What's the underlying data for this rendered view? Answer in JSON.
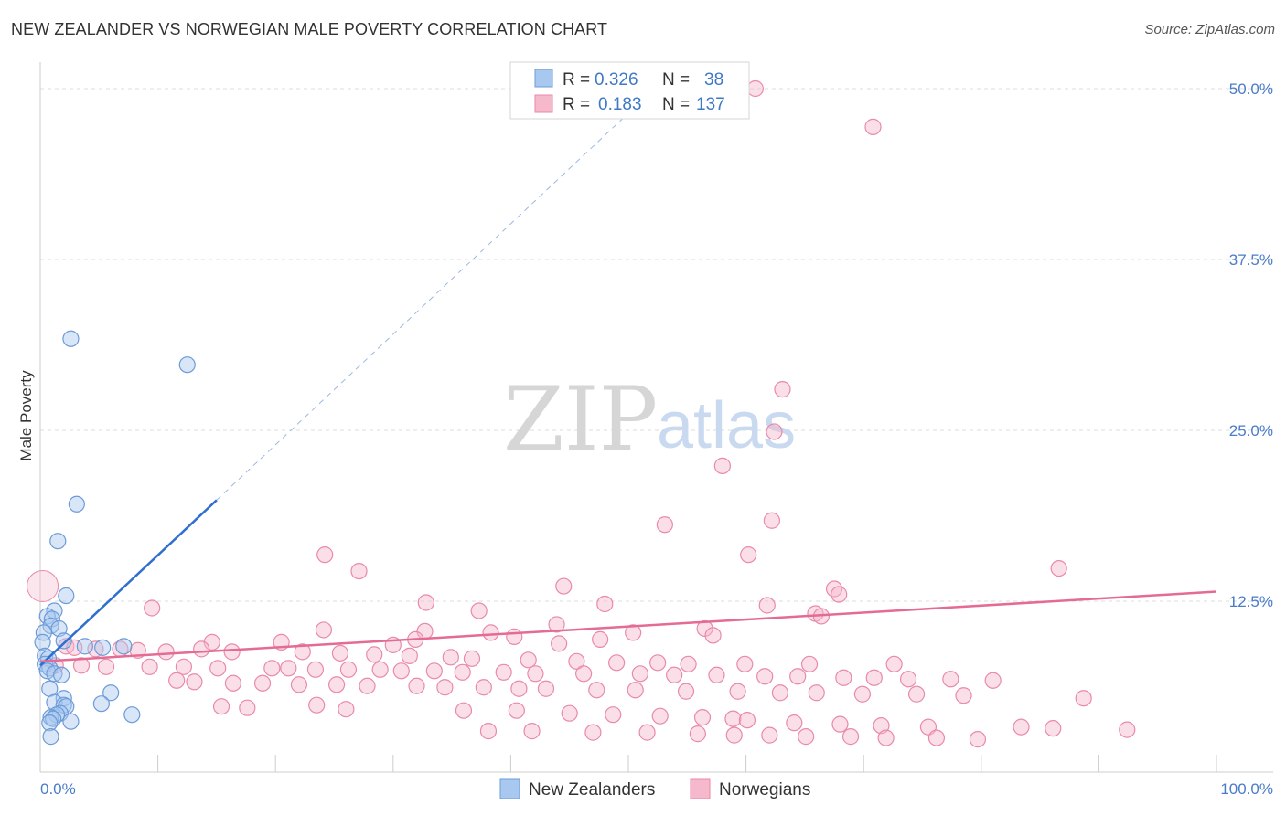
{
  "title": "NEW ZEALANDER VS NORWEGIAN MALE POVERTY CORRELATION CHART",
  "source": "Source: ZipAtlas.com",
  "watermark": {
    "zip": "ZIP",
    "atlas": "atlas"
  },
  "legend": {
    "rows": [
      {
        "r_label": "R = ",
        "r_value": "0.326",
        "n_label": "N = ",
        "n_value": "38",
        "color": "#a9c8f0"
      },
      {
        "r_label": "R = ",
        "r_value": "0.183",
        "n_label": "N = ",
        "n_value": "137",
        "color": "#f6b8cb"
      }
    ]
  },
  "bottom_legend": [
    "New Zealanders",
    "Norwegians"
  ],
  "chart_data": {
    "type": "scatter",
    "title": "NEW ZEALANDER VS NORWEGIAN MALE POVERTY CORRELATION CHART",
    "xlabel": "",
    "ylabel": "Male Poverty",
    "xlim": [
      0,
      100
    ],
    "ylim": [
      0,
      50
    ],
    "ytick_values": [
      12.5,
      25,
      37.5,
      50
    ],
    "ytick_labels": [
      "12.5%",
      "25.0%",
      "37.5%",
      "50.0%"
    ],
    "xtick_labels": [
      "0.0%",
      "100.0%"
    ],
    "grid": true,
    "series": [
      {
        "name": "New Zealanders",
        "color": "#a9c8f0",
        "stroke": "#6c9bd8",
        "line_color": "#2f6fd0",
        "trend": {
          "x0": 0.0,
          "y0": 7.8,
          "x1": 15.0,
          "y1": 19.9,
          "x_ext": 50.0,
          "y_ext": 48.2
        },
        "points": [
          [
            2.6,
            31.7
          ],
          [
            12.5,
            29.8
          ],
          [
            3.1,
            19.6
          ],
          [
            1.5,
            16.9
          ],
          [
            2.2,
            12.9
          ],
          [
            1.2,
            11.8
          ],
          [
            0.6,
            11.4
          ],
          [
            1.0,
            11.2
          ],
          [
            0.9,
            10.7
          ],
          [
            1.6,
            10.5
          ],
          [
            0.3,
            10.2
          ],
          [
            0.2,
            9.5
          ],
          [
            2.0,
            9.6
          ],
          [
            3.8,
            9.2
          ],
          [
            7.1,
            9.2
          ],
          [
            5.3,
            9.1
          ],
          [
            0.4,
            8.5
          ],
          [
            0.7,
            8.3
          ],
          [
            0.4,
            7.9
          ],
          [
            0.8,
            7.6
          ],
          [
            0.6,
            7.4
          ],
          [
            1.2,
            7.2
          ],
          [
            1.8,
            7.1
          ],
          [
            0.8,
            6.1
          ],
          [
            6.0,
            5.8
          ],
          [
            2.0,
            5.4
          ],
          [
            1.2,
            5.1
          ],
          [
            5.2,
            5.0
          ],
          [
            2.0,
            4.9
          ],
          [
            2.2,
            4.8
          ],
          [
            1.7,
            4.3
          ],
          [
            1.4,
            4.2
          ],
          [
            7.8,
            4.2
          ],
          [
            0.9,
            4.0
          ],
          [
            1.1,
            3.9
          ],
          [
            2.6,
            3.7
          ],
          [
            0.8,
            3.6
          ],
          [
            0.9,
            2.6
          ]
        ]
      },
      {
        "name": "Norwegians",
        "color": "#f6b8cb",
        "stroke": "#e98aa8",
        "line_color": "#e46b94",
        "trend": {
          "x0": 0.0,
          "y0": 8.1,
          "x1": 100.0,
          "y1": 13.2
        },
        "points": [
          [
            60.8,
            50.0
          ],
          [
            70.8,
            47.2
          ],
          [
            63.1,
            28.0
          ],
          [
            62.4,
            24.9
          ],
          [
            58.0,
            22.4
          ],
          [
            53.1,
            18.1
          ],
          [
            62.2,
            18.4
          ],
          [
            60.2,
            15.9
          ],
          [
            24.2,
            15.9
          ],
          [
            27.1,
            14.7
          ],
          [
            86.6,
            14.9
          ],
          [
            44.5,
            13.6
          ],
          [
            67.5,
            13.4
          ],
          [
            67.9,
            13.0
          ],
          [
            32.8,
            12.4
          ],
          [
            48.0,
            12.3
          ],
          [
            61.8,
            12.2
          ],
          [
            9.5,
            12.0
          ],
          [
            37.3,
            11.8
          ],
          [
            65.9,
            11.6
          ],
          [
            66.4,
            11.4
          ],
          [
            43.9,
            10.8
          ],
          [
            56.5,
            10.5
          ],
          [
            24.1,
            10.4
          ],
          [
            32.7,
            10.3
          ],
          [
            38.3,
            10.2
          ],
          [
            50.4,
            10.2
          ],
          [
            57.2,
            10.0
          ],
          [
            40.3,
            9.9
          ],
          [
            47.6,
            9.7
          ],
          [
            31.9,
            9.7
          ],
          [
            14.6,
            9.5
          ],
          [
            20.5,
            9.5
          ],
          [
            44.1,
            9.4
          ],
          [
            30.0,
            9.3
          ],
          [
            2.2,
            9.2
          ],
          [
            2.9,
            9.1
          ],
          [
            4.7,
            9.0
          ],
          [
            6.8,
            9.0
          ],
          [
            13.7,
            9.0
          ],
          [
            8.3,
            8.9
          ],
          [
            10.7,
            8.8
          ],
          [
            16.3,
            8.8
          ],
          [
            22.3,
            8.8
          ],
          [
            25.5,
            8.7
          ],
          [
            28.4,
            8.6
          ],
          [
            31.4,
            8.5
          ],
          [
            34.9,
            8.4
          ],
          [
            36.7,
            8.3
          ],
          [
            41.5,
            8.2
          ],
          [
            45.6,
            8.1
          ],
          [
            49.0,
            8.0
          ],
          [
            52.5,
            8.0
          ],
          [
            55.1,
            7.9
          ],
          [
            59.9,
            7.9
          ],
          [
            65.4,
            7.9
          ],
          [
            72.6,
            7.9
          ],
          [
            1.3,
            7.8
          ],
          [
            3.5,
            7.8
          ],
          [
            5.6,
            7.7
          ],
          [
            9.3,
            7.7
          ],
          [
            12.2,
            7.7
          ],
          [
            15.1,
            7.6
          ],
          [
            19.7,
            7.6
          ],
          [
            21.1,
            7.6
          ],
          [
            23.4,
            7.5
          ],
          [
            26.2,
            7.5
          ],
          [
            28.9,
            7.5
          ],
          [
            30.7,
            7.4
          ],
          [
            33.5,
            7.4
          ],
          [
            35.9,
            7.3
          ],
          [
            39.4,
            7.3
          ],
          [
            42.1,
            7.2
          ],
          [
            46.2,
            7.2
          ],
          [
            51.0,
            7.2
          ],
          [
            53.9,
            7.1
          ],
          [
            57.5,
            7.1
          ],
          [
            61.6,
            7.0
          ],
          [
            64.4,
            7.0
          ],
          [
            68.3,
            6.9
          ],
          [
            70.9,
            6.9
          ],
          [
            73.8,
            6.8
          ],
          [
            77.4,
            6.8
          ],
          [
            81.0,
            6.7
          ],
          [
            11.6,
            6.7
          ],
          [
            13.1,
            6.6
          ],
          [
            16.4,
            6.5
          ],
          [
            18.9,
            6.5
          ],
          [
            22.0,
            6.4
          ],
          [
            25.2,
            6.4
          ],
          [
            27.8,
            6.3
          ],
          [
            32.0,
            6.3
          ],
          [
            34.4,
            6.2
          ],
          [
            37.7,
            6.2
          ],
          [
            40.7,
            6.1
          ],
          [
            43.0,
            6.1
          ],
          [
            47.3,
            6.0
          ],
          [
            50.6,
            6.0
          ],
          [
            54.9,
            5.9
          ],
          [
            59.3,
            5.9
          ],
          [
            62.9,
            5.8
          ],
          [
            66.0,
            5.8
          ],
          [
            69.9,
            5.7
          ],
          [
            74.5,
            5.7
          ],
          [
            78.5,
            5.6
          ],
          [
            88.7,
            5.4
          ],
          [
            15.4,
            4.8
          ],
          [
            17.6,
            4.7
          ],
          [
            23.5,
            4.9
          ],
          [
            26.0,
            4.6
          ],
          [
            36.0,
            4.5
          ],
          [
            40.5,
            4.5
          ],
          [
            45.0,
            4.3
          ],
          [
            48.7,
            4.2
          ],
          [
            52.7,
            4.1
          ],
          [
            56.3,
            4.0
          ],
          [
            58.9,
            3.9
          ],
          [
            60.1,
            3.8
          ],
          [
            64.1,
            3.6
          ],
          [
            68.0,
            3.5
          ],
          [
            71.5,
            3.4
          ],
          [
            75.5,
            3.3
          ],
          [
            83.4,
            3.3
          ],
          [
            86.1,
            3.2
          ],
          [
            92.4,
            3.1
          ],
          [
            38.1,
            3.0
          ],
          [
            41.8,
            3.0
          ],
          [
            47.0,
            2.9
          ],
          [
            51.6,
            2.9
          ],
          [
            55.9,
            2.8
          ],
          [
            59.0,
            2.7
          ],
          [
            62.0,
            2.7
          ],
          [
            65.1,
            2.6
          ],
          [
            68.9,
            2.6
          ],
          [
            71.9,
            2.5
          ],
          [
            76.2,
            2.5
          ],
          [
            79.7,
            2.4
          ]
        ]
      }
    ]
  }
}
